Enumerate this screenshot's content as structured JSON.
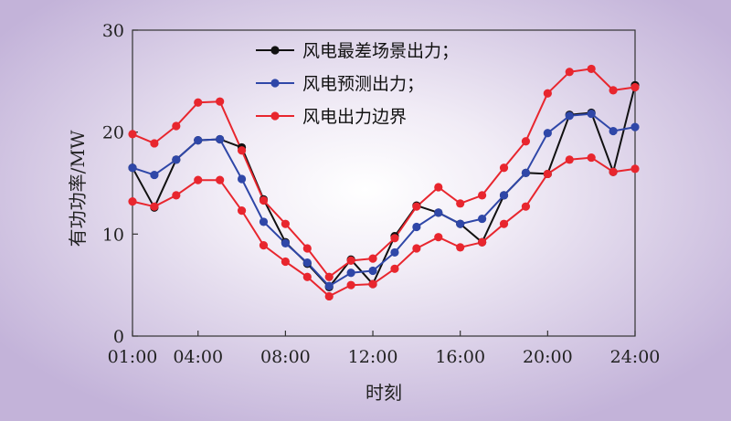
{
  "chart_data": {
    "type": "line",
    "xlabel": "时刻",
    "ylabel": "有功功率/MW",
    "xlim": [
      1,
      24
    ],
    "ylim": [
      0,
      30
    ],
    "x_ticks": [
      {
        "value": 1,
        "label": "01:00"
      },
      {
        "value": 4,
        "label": "04:00"
      },
      {
        "value": 8,
        "label": "08:00"
      },
      {
        "value": 12,
        "label": "12:00"
      },
      {
        "value": 16,
        "label": "16:00"
      },
      {
        "value": 20,
        "label": "20:00"
      },
      {
        "value": 24,
        "label": "24:00"
      }
    ],
    "y_ticks": [
      {
        "value": 0,
        "label": "0"
      },
      {
        "value": 10,
        "label": "10"
      },
      {
        "value": 20,
        "label": "20"
      },
      {
        "value": 30,
        "label": "30"
      }
    ],
    "grid": false,
    "legend_position": "top-center",
    "x": [
      1,
      2,
      3,
      4,
      5,
      6,
      7,
      8,
      9,
      10,
      11,
      12,
      13,
      14,
      15,
      16,
      17,
      18,
      19,
      20,
      21,
      22,
      23,
      24
    ],
    "series": [
      {
        "name": "风电最差场景出力；",
        "color": "#111111",
        "values": [
          16.5,
          12.6,
          17.3,
          19.2,
          19.3,
          18.5,
          13.4,
          9.2,
          7.1,
          4.8,
          7.5,
          5.1,
          9.8,
          12.8,
          12.1,
          11.0,
          9.2,
          13.8,
          16.0,
          15.9,
          21.7,
          21.9,
          16.1,
          24.6
        ]
      },
      {
        "name": "风电预测出力；",
        "color": "#2f47a8",
        "values": [
          16.5,
          15.8,
          17.3,
          19.2,
          19.3,
          15.4,
          11.2,
          9.1,
          7.2,
          4.9,
          6.2,
          6.4,
          8.2,
          10.7,
          12.1,
          11.0,
          11.5,
          13.8,
          16.0,
          19.9,
          21.6,
          21.8,
          20.1,
          20.5
        ]
      },
      {
        "name": "风电出力边界",
        "color": "#e8262e",
        "values": [
          19.8,
          18.9,
          20.6,
          22.9,
          23.0,
          18.2,
          13.3,
          11.0,
          8.6,
          5.8,
          7.4,
          7.6,
          9.6,
          12.7,
          14.6,
          13.0,
          13.8,
          16.5,
          19.1,
          23.8,
          25.9,
          26.2,
          24.1,
          24.4
        ]
      },
      {
        "name": "",
        "color": "#e8262e",
        "values": [
          13.2,
          12.7,
          13.8,
          15.3,
          15.3,
          12.3,
          8.9,
          7.3,
          5.8,
          3.9,
          5.0,
          5.1,
          6.6,
          8.6,
          9.7,
          8.7,
          9.2,
          11.0,
          12.7,
          15.9,
          17.3,
          17.5,
          16.1,
          16.4
        ]
      }
    ]
  }
}
